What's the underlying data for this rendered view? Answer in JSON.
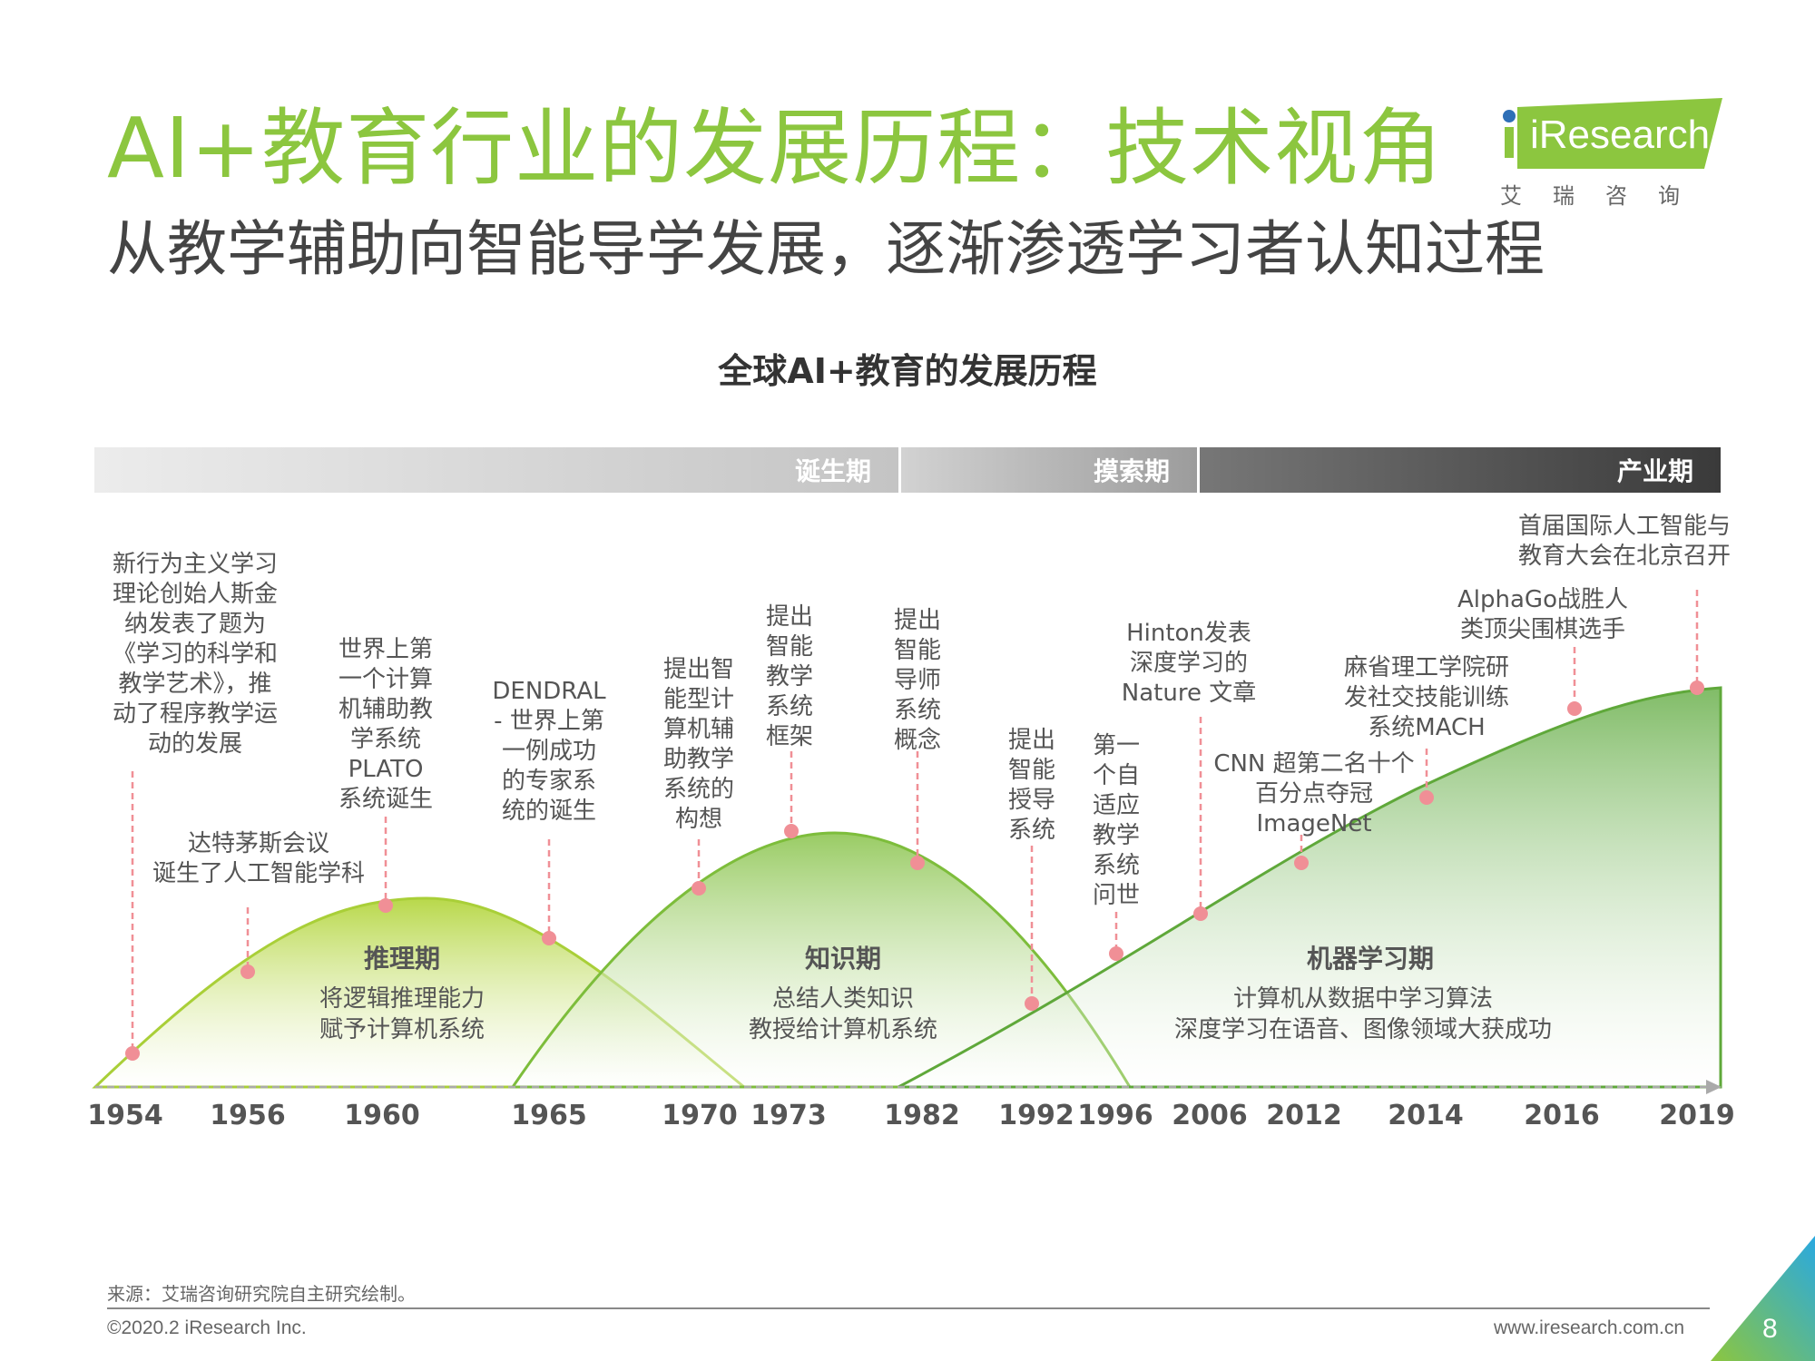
{
  "header": {
    "title": "AI+教育行业的发展历程：技术视角",
    "subtitle": "从教学辅助向智能导学发展，逐渐渗透学习者认知过程"
  },
  "logo": {
    "word": "iResearch",
    "chinese": "艾瑞咨询"
  },
  "diagram": {
    "title": "全球AI+教育的发展历程",
    "periods": [
      "诞生期",
      "摸索期",
      "产业期"
    ],
    "years": [
      "1954",
      "1956",
      "1960",
      "1965",
      "1970",
      "1973",
      "1982",
      "1992",
      "1996",
      "2006",
      "2012",
      "2014",
      "2016",
      "2019"
    ],
    "stages": [
      {
        "name": "推理期",
        "description": [
          "将逻辑推理能力",
          "赋予计算机系统"
        ]
      },
      {
        "name": "知识期",
        "description": [
          "总结人类知识",
          "教授给计算机系统"
        ]
      },
      {
        "name": "机器学习期",
        "description": [
          "计算机从数据中学习算法",
          "深度学习在语音、图像领域大获成功"
        ]
      }
    ],
    "events": [
      {
        "year": "1954",
        "text": [
          "新行为主义学习",
          "理论创始人斯金",
          "纳发表了题为",
          "《学习的科学和",
          "教学艺术》，推",
          "动了程序教学运",
          "动的发展"
        ]
      },
      {
        "year": "1956",
        "text": [
          "达特茅斯会议",
          "诞生了人工智能学科"
        ]
      },
      {
        "year": "1960",
        "text": [
          "世界上第",
          "一个计算",
          "机辅助教",
          "学系统",
          "PLATO",
          "系统诞生"
        ]
      },
      {
        "year": "1965",
        "text": [
          "DENDRAL",
          "- 世界上第",
          "一例成功",
          "的专家系",
          "统的诞生"
        ]
      },
      {
        "year": "1970",
        "text": [
          "提出智",
          "能型计",
          "算机辅",
          "助教学",
          "系统的",
          "构想"
        ]
      },
      {
        "year": "1973",
        "text": [
          "提出",
          "智能",
          "教学",
          "系统",
          "框架"
        ]
      },
      {
        "year": "1982",
        "text": [
          "提出",
          "智能",
          "导师",
          "系统",
          "概念"
        ]
      },
      {
        "year": "1992",
        "text": [
          "提出",
          "智能",
          "授导",
          "系统"
        ]
      },
      {
        "year": "1996",
        "text": [
          "第一",
          "个自",
          "适应",
          "教学",
          "系统",
          "问世"
        ]
      },
      {
        "year": "2006",
        "text": [
          "Hinton发表",
          "深度学习的",
          "Nature 文章"
        ]
      },
      {
        "year": "2012",
        "text": [
          "CNN 超第二名十个",
          "百分点夺冠",
          "ImageNet"
        ]
      },
      {
        "year": "2014",
        "text": [
          "麻省理工学院研",
          "发社交技能训练",
          "系统MACH"
        ]
      },
      {
        "year": "2016",
        "text": [
          "AlphaGo战胜人",
          "类顶尖围棋选手"
        ]
      },
      {
        "year": "2019",
        "text": [
          "首届国际人工智能与",
          "教育大会在北京召开"
        ]
      }
    ]
  },
  "footer": {
    "source": "来源：艾瑞咨询研究院自主研究绘制。",
    "copyright": "©2020.2 iResearch Inc.",
    "website": "www.iresearch.com.cn",
    "page": "8"
  }
}
